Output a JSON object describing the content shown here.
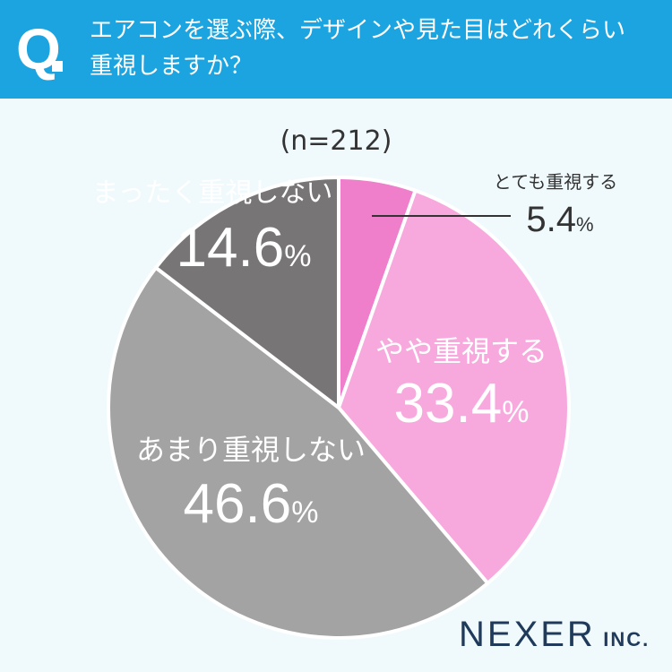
{
  "header": {
    "q_mark": "Q",
    "question_line1": "エアコンを選ぶ際、デザインや見た目はどれくらい",
    "question_line2": "重視しますか？"
  },
  "sample": "(n=212)",
  "brand": {
    "name": "NEXER",
    "suffix": "INC."
  },
  "colors": {
    "header": "#1ba4df",
    "background": "#f0fafc"
  },
  "chart_data": {
    "type": "pie",
    "categories": [
      "とても重視する",
      "やや重視する",
      "あまり重視しない",
      "まったく重視しない"
    ],
    "values": [
      5.4,
      33.4,
      46.6,
      14.6
    ],
    "labels": [
      "5.4",
      "33.4",
      "46.6",
      "14.6"
    ],
    "unit": "%",
    "colors": [
      "#ef7ecb",
      "#f7a9de",
      "#a3a3a3",
      "#787576"
    ],
    "start": "12 o'clock",
    "direction": "clockwise"
  }
}
